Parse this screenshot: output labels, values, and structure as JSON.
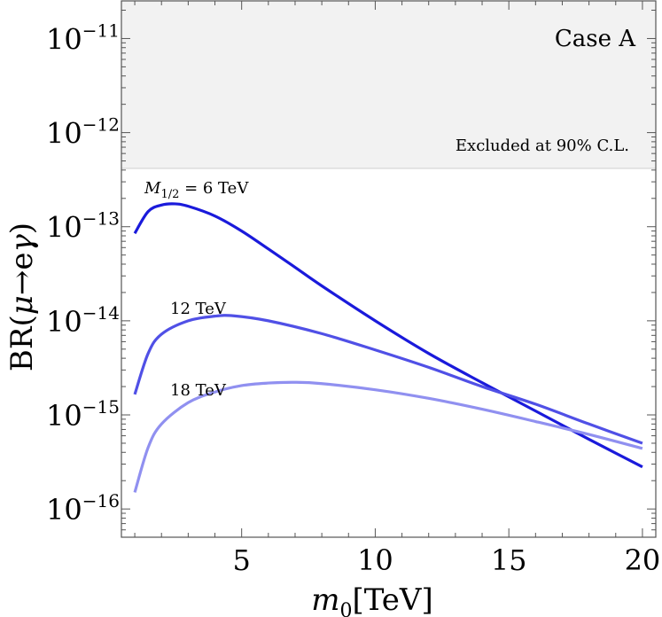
{
  "chart_data": {
    "type": "line",
    "title": "",
    "xlabel_base": "m",
    "xlabel_sub": "0",
    "xlabel_unit": "[TeV]",
    "ylabel_prefix": "BR(",
    "ylabel_mu": "μ",
    "ylabel_arrow": "→e",
    "ylabel_gamma": "γ",
    "ylabel_suffix": ")",
    "xlim": [
      0.5,
      20.5
    ],
    "ylim_log10": [
      -16.3,
      -10.6
    ],
    "y_scale": "log",
    "x_ticks": [
      5,
      10,
      15,
      20
    ],
    "y_ticks": [
      {
        "base": "10",
        "exp": "−11",
        "value": -11
      },
      {
        "base": "10",
        "exp": "−12",
        "value": -12
      },
      {
        "base": "10",
        "exp": "−13",
        "value": -13
      },
      {
        "base": "10",
        "exp": "−14",
        "value": -14
      },
      {
        "base": "10",
        "exp": "−15",
        "value": -15
      },
      {
        "base": "10",
        "exp": "−16",
        "value": -16
      }
    ],
    "excluded_region": {
      "label": "Excluded at 90% C.L.",
      "log10_lower": -12.38,
      "color": "#f2f2f2"
    },
    "case_label": "Case A",
    "series": [
      {
        "name": "M1/2 = 6 TeV",
        "label_main": "M",
        "label_sub": "1/2",
        "label_rest": " = 6 TeV",
        "color": "#1a1adb",
        "x": [
          1,
          1.5,
          2,
          2.5,
          3,
          4,
          5,
          6,
          7,
          8,
          10,
          12,
          14,
          16,
          18,
          20
        ],
        "y": [
          8.5e-14,
          1.45e-13,
          1.7e-13,
          1.75e-13,
          1.65e-13,
          1.3e-13,
          9e-14,
          5.8e-14,
          3.7e-14,
          2.35e-14,
          1e-14,
          4.5e-15,
          2.2e-15,
          1.1e-15,
          5.5e-16,
          2.8e-16
        ]
      },
      {
        "name": "12 TeV",
        "label": "12 TeV",
        "color": "#5050e6",
        "x": [
          1,
          1.5,
          2,
          3,
          4,
          4.7,
          6,
          8,
          10,
          12,
          14,
          16,
          18,
          20
        ],
        "y": [
          1.65e-15,
          4.5e-15,
          7.2e-15,
          1e-14,
          1.12e-14,
          1.13e-14,
          1e-14,
          7.3e-15,
          4.9e-15,
          3.2e-15,
          2e-15,
          1.3e-15,
          8e-16,
          5e-16
        ]
      },
      {
        "name": "18 TeV",
        "label": "18 TeV",
        "color": "#9090f0",
        "x": [
          1,
          1.5,
          2,
          3,
          4,
          5,
          6,
          7,
          8,
          10,
          12,
          14,
          16,
          18,
          20
        ],
        "y": [
          1.5e-16,
          4.5e-16,
          8e-16,
          1.35e-15,
          1.75e-15,
          2.05e-15,
          2.18e-15,
          2.22e-15,
          2.15e-15,
          1.85e-15,
          1.5e-15,
          1.15e-15,
          8.5e-16,
          6.2e-16,
          4.4e-16
        ]
      }
    ]
  }
}
